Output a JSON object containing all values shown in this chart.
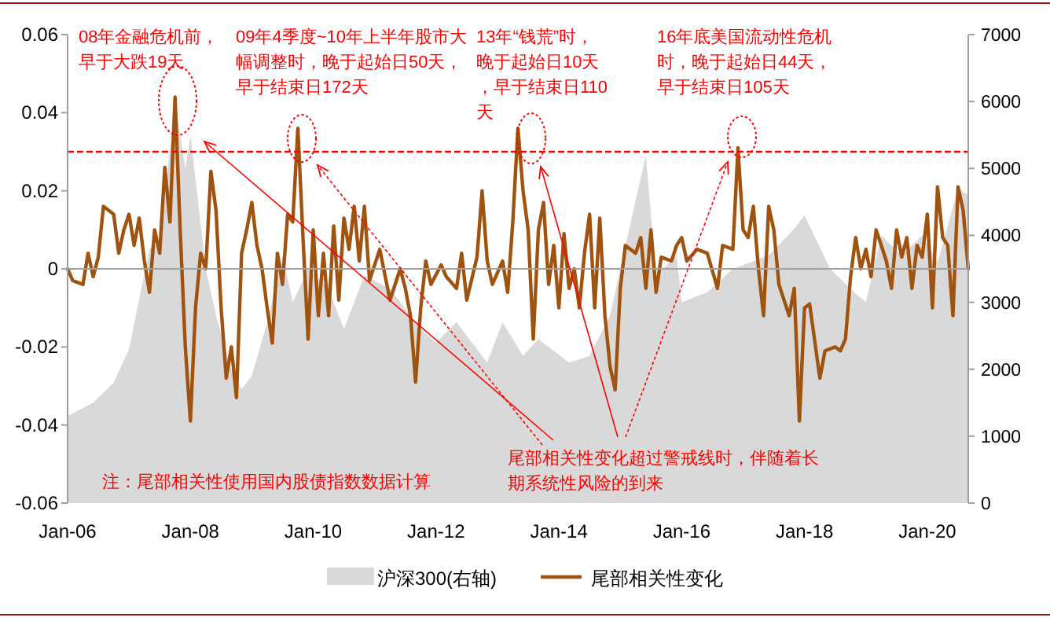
{
  "chart_data": {
    "type": "line",
    "legend": "bottom",
    "xlim": [
      "2006-01",
      "2020-09"
    ],
    "xticks": [
      {
        "value": "2006-01",
        "label": "Jan-06"
      },
      {
        "value": "2008-01",
        "label": "Jan-08"
      },
      {
        "value": "2010-01",
        "label": "Jan-10"
      },
      {
        "value": "2012-01",
        "label": "Jan-12"
      },
      {
        "value": "2014-01",
        "label": "Jan-14"
      },
      {
        "value": "2016-01",
        "label": "Jan-16"
      },
      {
        "value": "2018-01",
        "label": "Jan-18"
      },
      {
        "value": "2020-01",
        "label": "Jan-20"
      }
    ],
    "ylim": [
      -0.06,
      0.06
    ],
    "yticks": [
      -0.06,
      -0.04,
      -0.02,
      0,
      0.02,
      0.04,
      0.06
    ],
    "y2lim": [
      0,
      7000
    ],
    "y2ticks": [
      0,
      1000,
      2000,
      3000,
      4000,
      5000,
      6000,
      7000
    ],
    "series": [
      {
        "name": "沪深300(右轴)",
        "type": "area",
        "axis": "y2",
        "color": "#d9d9d9",
        "x": [
          "2006-01",
          "2006-06",
          "2006-10",
          "2007-01",
          "2007-05",
          "2007-07",
          "2007-10",
          "2007-12",
          "2008-01",
          "2008-04",
          "2008-06",
          "2008-09",
          "2008-11",
          "2009-01",
          "2009-04",
          "2009-07",
          "2009-09",
          "2009-12",
          "2010-04",
          "2010-07",
          "2010-11",
          "2011-04",
          "2011-10",
          "2012-01",
          "2012-05",
          "2012-11",
          "2013-02",
          "2013-06",
          "2013-09",
          "2014-03",
          "2014-07",
          "2014-11",
          "2015-01",
          "2015-06",
          "2015-08",
          "2015-12",
          "2016-01",
          "2016-06",
          "2016-11",
          "2017-06",
          "2017-11",
          "2018-01",
          "2018-06",
          "2018-10",
          "2019-01",
          "2019-04",
          "2019-08",
          "2019-12",
          "2020-03",
          "2020-07",
          "2020-09"
        ],
        "values": [
          1300,
          1500,
          1800,
          2300,
          3800,
          3900,
          6000,
          5000,
          5500,
          3500,
          2800,
          2000,
          1700,
          1900,
          2700,
          3700,
          3000,
          3500,
          3200,
          2600,
          3400,
          3200,
          2600,
          2400,
          2700,
          2100,
          2700,
          2200,
          2450,
          2100,
          2200,
          2800,
          3500,
          5200,
          3400,
          3700,
          3000,
          3150,
          3500,
          3700,
          4100,
          4300,
          3500,
          3200,
          3000,
          4000,
          3700,
          4000,
          3600,
          4700,
          4600
        ]
      },
      {
        "name": "尾部相关性变化",
        "color": "#a0520f",
        "x": [
          "2006-01",
          "2006-02",
          "2006-04",
          "2006-05",
          "2006-06",
          "2006-07",
          "2006-08",
          "2006-10",
          "2006-11",
          "2006-12",
          "2007-01",
          "2007-02",
          "2007-03",
          "2007-04",
          "2007-05",
          "2007-06",
          "2007-07",
          "2007-08",
          "2007-09",
          "2007-10",
          "2007-11",
          "2007-12",
          "2008-01",
          "2008-02",
          "2008-03",
          "2008-04",
          "2008-05",
          "2008-06",
          "2008-07",
          "2008-08",
          "2008-09",
          "2008-10",
          "2008-11",
          "2008-12",
          "2009-01",
          "2009-02",
          "2009-03",
          "2009-04",
          "2009-05",
          "2009-06",
          "2009-07",
          "2009-08",
          "2009-09",
          "2009-10",
          "2009-11",
          "2009-12",
          "2010-01",
          "2010-02",
          "2010-03",
          "2010-04",
          "2010-05",
          "2010-06",
          "2010-07",
          "2010-08",
          "2010-09",
          "2010-10",
          "2010-11",
          "2010-12",
          "2011-02",
          "2011-04",
          "2011-06",
          "2011-07",
          "2011-08",
          "2011-09",
          "2011-10",
          "2011-11",
          "2011-12",
          "2012-02",
          "2012-03",
          "2012-05",
          "2012-06",
          "2012-07",
          "2012-09",
          "2012-10",
          "2012-11",
          "2012-12",
          "2013-02",
          "2013-03",
          "2013-04",
          "2013-05",
          "2013-06",
          "2013-07",
          "2013-08",
          "2013-09",
          "2013-10",
          "2013-11",
          "2013-12",
          "2014-01",
          "2014-02",
          "2014-03",
          "2014-04",
          "2014-05",
          "2014-06",
          "2014-07",
          "2014-08",
          "2014-09",
          "2014-10",
          "2014-11",
          "2014-12",
          "2015-01",
          "2015-02",
          "2015-04",
          "2015-05",
          "2015-06",
          "2015-07",
          "2015-08",
          "2015-09",
          "2015-11",
          "2015-12",
          "2016-01",
          "2016-02",
          "2016-04",
          "2016-06",
          "2016-08",
          "2016-09",
          "2016-11",
          "2016-12",
          "2017-01",
          "2017-02",
          "2017-03",
          "2017-04",
          "2017-05",
          "2017-06",
          "2017-07",
          "2017-08",
          "2017-10",
          "2017-11",
          "2017-12",
          "2018-01",
          "2018-02",
          "2018-04",
          "2018-05",
          "2018-07",
          "2018-08",
          "2018-09",
          "2018-10",
          "2018-11",
          "2018-12",
          "2019-01",
          "2019-02",
          "2019-03",
          "2019-04",
          "2019-05",
          "2019-06",
          "2019-07",
          "2019-08",
          "2019-09",
          "2019-10",
          "2019-11",
          "2019-12",
          "2020-01",
          "2020-02",
          "2020-03",
          "2020-04",
          "2020-05",
          "2020-06",
          "2020-07",
          "2020-08",
          "2020-09"
        ],
        "values": [
          0.0,
          -0.003,
          -0.004,
          0.004,
          -0.002,
          0.003,
          0.016,
          0.014,
          0.004,
          0.01,
          0.014,
          0.006,
          0.013,
          0.002,
          -0.006,
          0.01,
          0.004,
          0.026,
          0.012,
          0.044,
          0.01,
          -0.02,
          -0.039,
          -0.01,
          0.004,
          0.0,
          0.025,
          0.015,
          -0.01,
          -0.028,
          -0.02,
          -0.033,
          0.004,
          0.01,
          0.017,
          0.006,
          0.0,
          -0.01,
          -0.019,
          0.004,
          -0.004,
          0.014,
          0.012,
          0.036,
          0.008,
          -0.018,
          0.01,
          -0.012,
          0.004,
          -0.012,
          0.011,
          -0.008,
          0.013,
          0.005,
          0.016,
          0.002,
          0.016,
          -0.003,
          0.005,
          -0.008,
          0.0,
          -0.005,
          -0.012,
          -0.029,
          -0.01,
          0.002,
          -0.004,
          0.001,
          -0.002,
          -0.005,
          0.004,
          -0.008,
          0.003,
          0.02,
          0.002,
          -0.004,
          0.002,
          -0.006,
          0.012,
          0.036,
          0.02,
          0.01,
          -0.018,
          0.01,
          0.017,
          -0.004,
          0.006,
          -0.01,
          0.009,
          -0.005,
          0.0,
          -0.01,
          0.004,
          0.014,
          -0.01,
          0.013,
          -0.012,
          -0.025,
          -0.031,
          -0.005,
          0.006,
          0.004,
          0.008,
          -0.005,
          0.01,
          -0.006,
          0.003,
          0.002,
          0.006,
          0.008,
          0.002,
          0.005,
          0.004,
          -0.005,
          0.006,
          0.005,
          0.031,
          0.01,
          0.008,
          0.016,
          0.0,
          -0.012,
          0.016,
          0.01,
          -0.004,
          -0.012,
          -0.005,
          -0.039,
          -0.01,
          -0.009,
          -0.028,
          -0.021,
          -0.02,
          -0.021,
          -0.018,
          -0.002,
          0.008,
          0.0,
          0.005,
          -0.002,
          0.01,
          0.006,
          0.002,
          -0.005,
          0.01,
          0.003,
          0.008,
          -0.005,
          0.006,
          0.003,
          0.014,
          -0.01,
          0.021,
          0.008,
          0.006,
          -0.012,
          0.021,
          0.015,
          0.0
        ]
      }
    ],
    "ref_lines": [
      {
        "axis": "y",
        "value": 0.03,
        "color": "#ff0000",
        "line_style": "dashed"
      }
    ],
    "annotations": [
      "08年金融危机前，早于大跌19天",
      "09年4季度~10年上半年股市大幅调整时，晚于起始日50天，早于结束日172天",
      "13年“钱荒”时，晚于起始日10天，早于结束日110天",
      "16年底美国流动性危机时，晚于起始日44天，早于结束日105天",
      "尾部相关性变化超过警戒线时，伴随着长期系统性风险的到来",
      "注：尾部相关性使用国内股债指数数据计算"
    ]
  }
}
